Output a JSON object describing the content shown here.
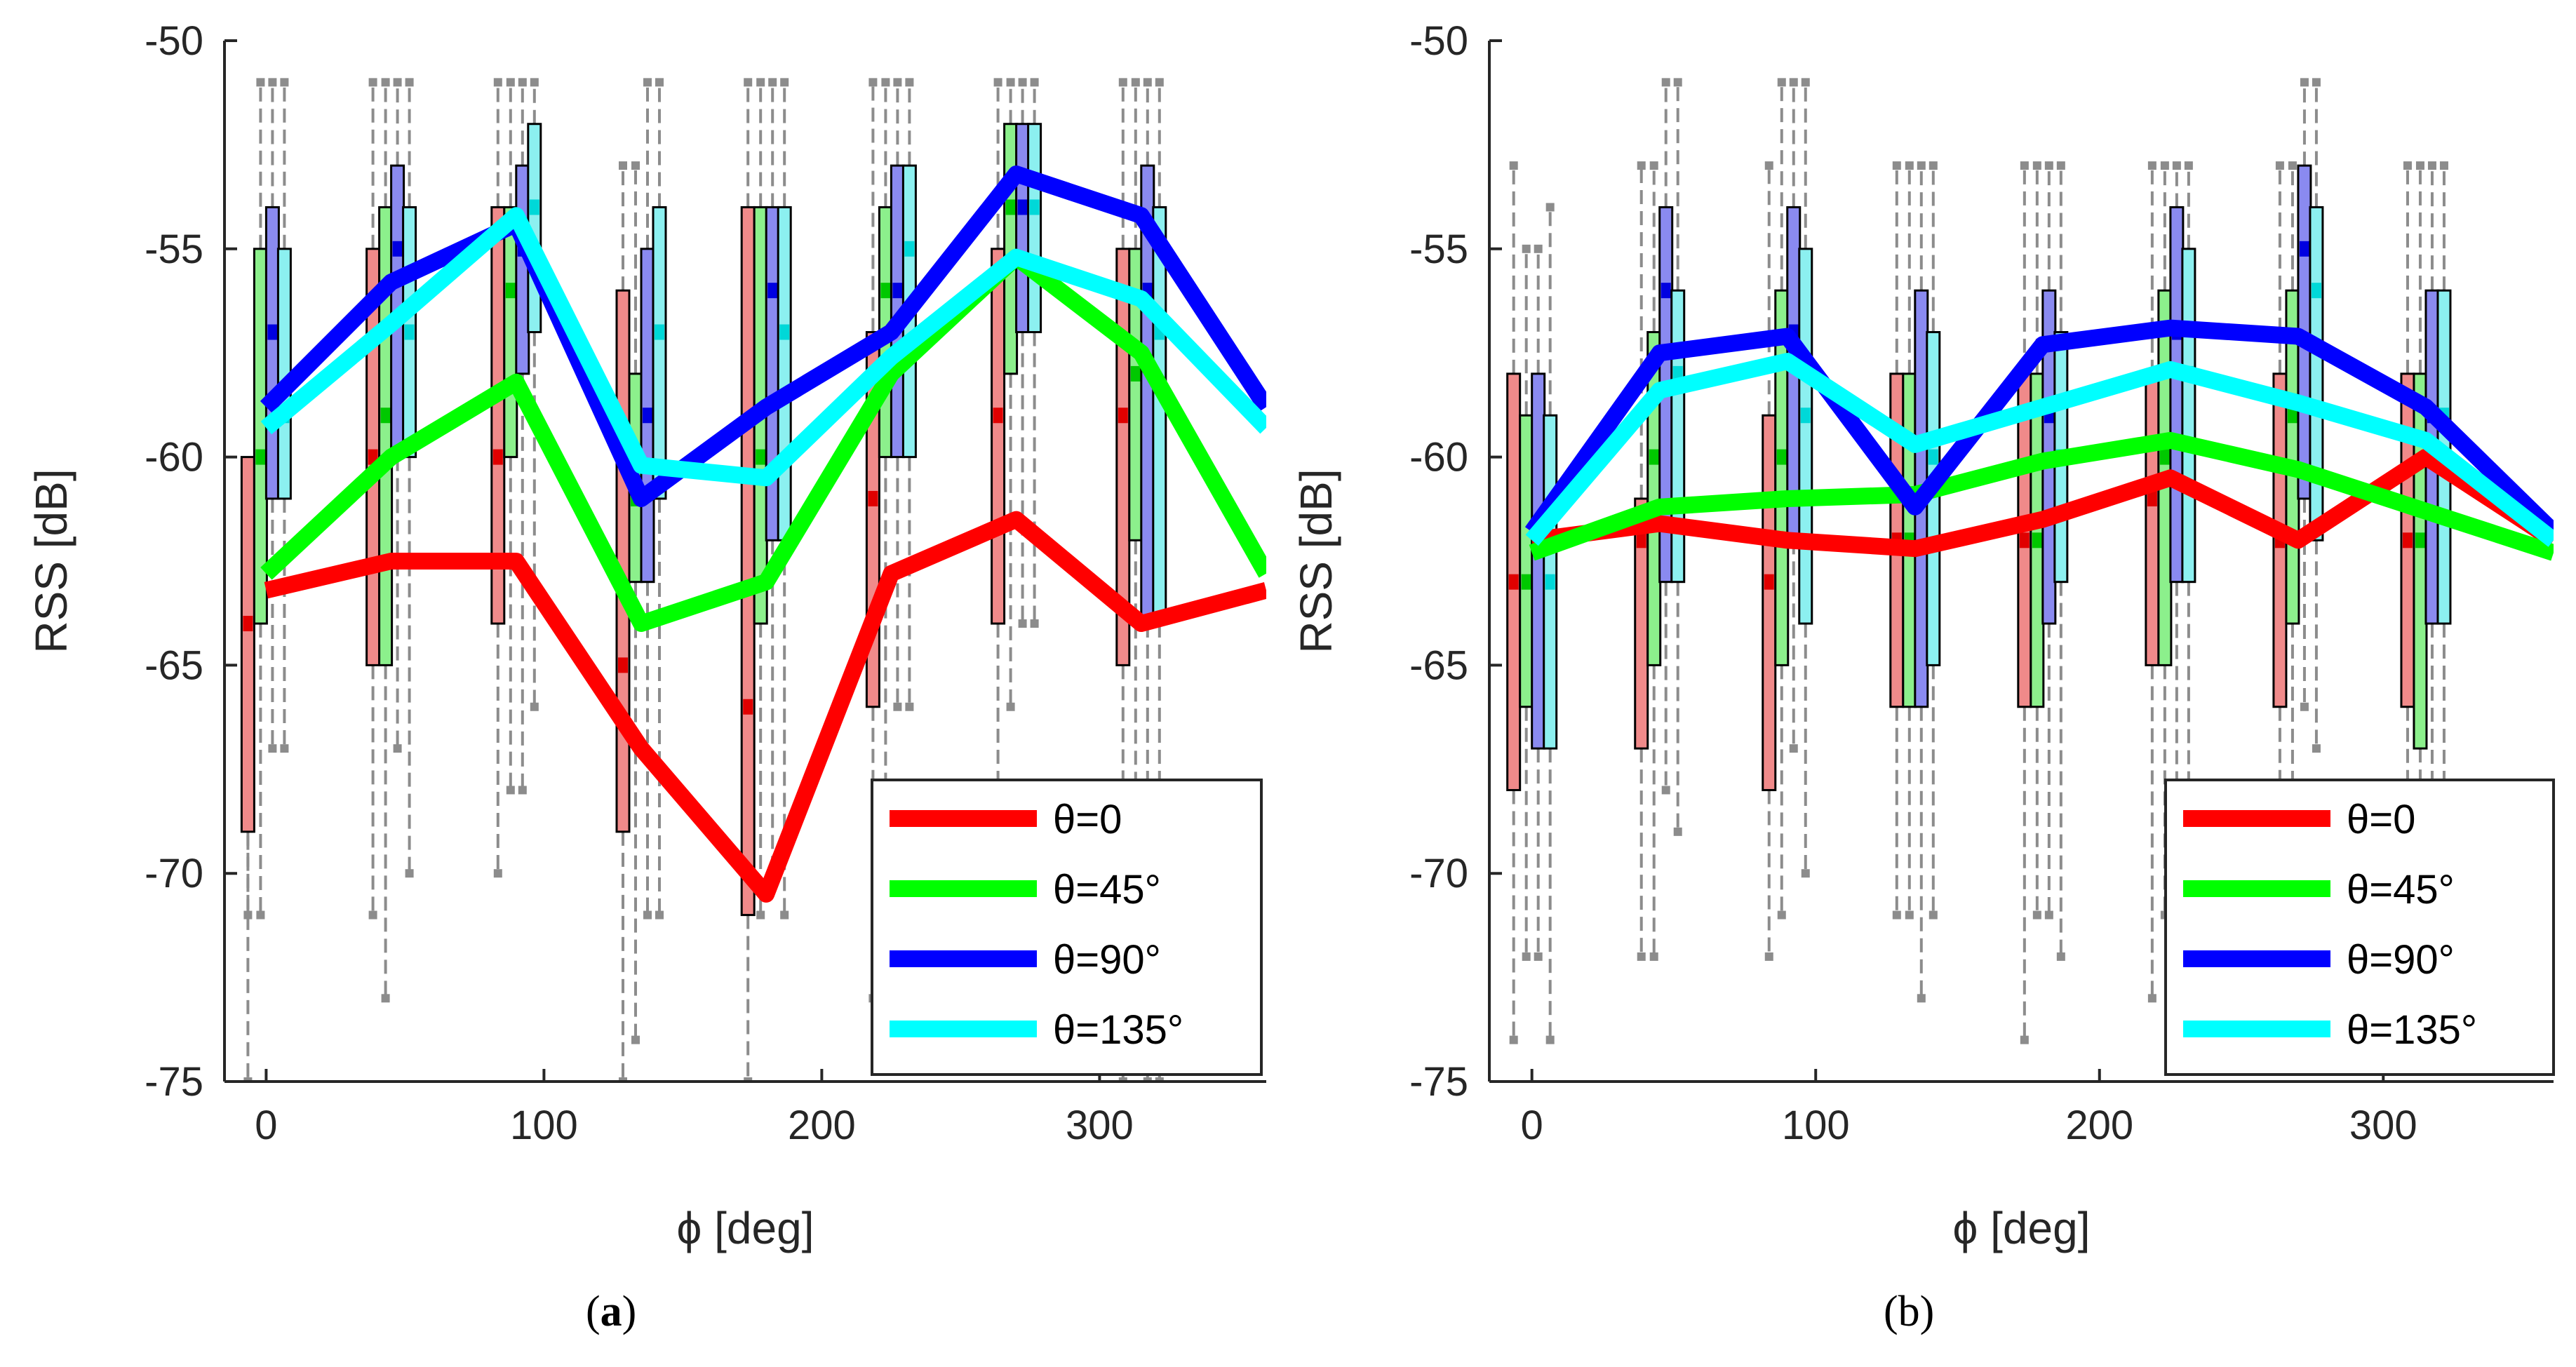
{
  "chart_data": [
    {
      "type": "line",
      "panel_label": "(a)",
      "panel_letter": "a",
      "xlabel": "ϕ [deg]",
      "ylabel": "RSS [dB]",
      "xlim": [
        -15,
        360
      ],
      "ylim": [
        -75,
        -50
      ],
      "xticks": [
        0,
        100,
        200,
        300
      ],
      "yticks": [
        -50,
        -55,
        -60,
        -65,
        -70,
        -75
      ],
      "x": [
        0,
        45,
        90,
        135,
        180,
        225,
        270,
        315,
        360
      ],
      "series": [
        {
          "name": "θ=0",
          "color": "#ff0000",
          "values": [
            -63.2,
            -62.5,
            -62.5,
            -67.0,
            -70.5,
            -62.8,
            -61.5,
            -64.0,
            -63.2
          ]
        },
        {
          "name": "θ=45°",
          "color": "#00ff00",
          "values": [
            -62.8,
            -60.0,
            -58.2,
            -64.0,
            -63.0,
            -58.0,
            -55.2,
            -57.5,
            -62.8
          ]
        },
        {
          "name": "θ=90°",
          "color": "#0000ff",
          "values": [
            -58.8,
            -55.8,
            -54.4,
            -61.0,
            -58.8,
            -57.0,
            -53.2,
            -54.2,
            -58.8
          ]
        },
        {
          "name": "θ=135°",
          "color": "#00ffff",
          "values": [
            -59.3,
            -56.8,
            -54.2,
            -60.2,
            -60.5,
            -57.6,
            -55.2,
            -56.2,
            -59.3
          ]
        }
      ],
      "boxes": [
        {
          "x": 0,
          "stats": [
            [
              -69,
              -60,
              -64,
              -75,
              -71
            ],
            [
              -64,
              -55,
              -60,
              -71,
              -51
            ],
            [
              -61,
              -54,
              -57,
              -67,
              -51
            ],
            [
              -61,
              -55,
              -59,
              -67,
              -51
            ]
          ]
        },
        {
          "x": 45,
          "stats": [
            [
              -65,
              -55,
              -60,
              -71,
              -51
            ],
            [
              -65,
              -54,
              -59,
              -73,
              -51
            ],
            [
              -60,
              -53,
              -55,
              -67,
              -51
            ],
            [
              -60,
              -54,
              -57,
              -70,
              -51
            ]
          ]
        },
        {
          "x": 90,
          "stats": [
            [
              -64,
              -54,
              -60,
              -70,
              -51
            ],
            [
              -60,
              -54,
              -56,
              -68,
              -51
            ],
            [
              -58,
              -53,
              -55,
              -68,
              -51
            ],
            [
              -57,
              -52,
              -54,
              -66,
              -51
            ]
          ]
        },
        {
          "x": 135,
          "stats": [
            [
              -69,
              -56,
              -65,
              -75,
              -53
            ],
            [
              -63,
              -58,
              -61,
              -74,
              -53
            ],
            [
              -63,
              -55,
              -59,
              -71,
              -51
            ],
            [
              -61,
              -54,
              -57,
              -71,
              -51
            ]
          ]
        },
        {
          "x": 180,
          "stats": [
            [
              -71,
              -54,
              -66,
              -75,
              -51
            ],
            [
              -64,
              -54,
              -60,
              -71,
              -51
            ],
            [
              -62,
              -54,
              -56,
              -70,
              -51
            ],
            [
              -62,
              -54,
              -57,
              -71,
              -51
            ]
          ]
        },
        {
          "x": 225,
          "stats": [
            [
              -66,
              -57,
              -61,
              -73,
              -51
            ],
            [
              -60,
              -54,
              -56,
              -68,
              -51
            ],
            [
              -60,
              -53,
              -56,
              -66,
              -51
            ],
            [
              -60,
              -53,
              -55,
              -66,
              -51
            ]
          ]
        },
        {
          "x": 270,
          "stats": [
            [
              -64,
              -55,
              -59,
              -70,
              -51
            ],
            [
              -58,
              -52,
              -54,
              -66,
              -51
            ],
            [
              -57,
              -52,
              -54,
              -64,
              -51
            ],
            [
              -57,
              -52,
              -54,
              -64,
              -51
            ]
          ]
        },
        {
          "x": 315,
          "stats": [
            [
              -65,
              -55,
              -59,
              -75,
              -51
            ],
            [
              -62,
              -55,
              -58,
              -73,
              -51
            ],
            [
              -64,
              -53,
              -56,
              -75,
              -51
            ],
            [
              -64,
              -54,
              -57,
              -75,
              -51
            ]
          ]
        }
      ],
      "legend": {
        "position": "bottom-right"
      }
    },
    {
      "type": "line",
      "panel_label": "(b)",
      "panel_letter": "b",
      "xlabel": "ϕ [deg]",
      "ylabel": "RSS [dB]",
      "xlim": [
        -15,
        360
      ],
      "ylim": [
        -75,
        -50
      ],
      "xticks": [
        0,
        100,
        200,
        300
      ],
      "yticks": [
        -50,
        -55,
        -60,
        -65,
        -70,
        -75
      ],
      "x": [
        0,
        45,
        90,
        135,
        180,
        225,
        270,
        315,
        360
      ],
      "series": [
        {
          "name": "θ=0",
          "color": "#ff0000",
          "values": [
            -62.0,
            -61.6,
            -62.0,
            -62.2,
            -61.5,
            -60.5,
            -62.0,
            -60.0,
            -62.0
          ]
        },
        {
          "name": "θ=45°",
          "color": "#00ff00",
          "values": [
            -62.3,
            -61.2,
            -61.0,
            -60.9,
            -60.1,
            -59.6,
            -60.3,
            -61.3,
            -62.3
          ]
        },
        {
          "name": "θ=90°",
          "color": "#0000ff",
          "values": [
            -61.8,
            -57.5,
            -57.1,
            -61.2,
            -57.3,
            -56.9,
            -57.1,
            -58.8,
            -61.8
          ]
        },
        {
          "name": "θ=135°",
          "color": "#00ffff",
          "values": [
            -62.0,
            -58.4,
            -57.7,
            -59.7,
            -58.8,
            -57.9,
            -58.7,
            -59.6,
            -62.0
          ]
        }
      ],
      "boxes": [
        {
          "x": 0,
          "stats": [
            [
              -68,
              -58,
              -63,
              -74,
              -53
            ],
            [
              -66,
              -59,
              -63,
              -72,
              -55
            ],
            [
              -67,
              -58,
              -62,
              -72,
              -55
            ],
            [
              -67,
              -59,
              -63,
              -74,
              -54
            ]
          ]
        },
        {
          "x": 45,
          "stats": [
            [
              -67,
              -61,
              -62,
              -72,
              -53
            ],
            [
              -65,
              -57,
              -60,
              -72,
              -53
            ],
            [
              -63,
              -54,
              -56,
              -68,
              -51
            ],
            [
              -63,
              -56,
              -58,
              -69,
              -51
            ]
          ]
        },
        {
          "x": 90,
          "stats": [
            [
              -68,
              -59,
              -63,
              -72,
              -53
            ],
            [
              -65,
              -56,
              -60,
              -71,
              -51
            ],
            [
              -62,
              -54,
              -57,
              -67,
              -51
            ],
            [
              -64,
              -55,
              -59,
              -70,
              -51
            ]
          ]
        },
        {
          "x": 135,
          "stats": [
            [
              -66,
              -58,
              -62,
              -71,
              -53
            ],
            [
              -66,
              -58,
              -62,
              -71,
              -53
            ],
            [
              -66,
              -56,
              -61,
              -73,
              -53
            ],
            [
              -65,
              -57,
              -60,
              -71,
              -53
            ]
          ]
        },
        {
          "x": 180,
          "stats": [
            [
              -66,
              -58,
              -62,
              -74,
              -53
            ],
            [
              -66,
              -58,
              -62,
              -71,
              -53
            ],
            [
              -64,
              -56,
              -59,
              -71,
              -53
            ],
            [
              -63,
              -57,
              -60,
              -72,
              -53
            ]
          ]
        },
        {
          "x": 225,
          "stats": [
            [
              -65,
              -58,
              -61,
              -73,
              -53
            ],
            [
              -65,
              -56,
              -60,
              -71,
              -53
            ],
            [
              -63,
              -54,
              -57,
              -68,
              -53
            ],
            [
              -63,
              -55,
              -58,
              -68,
              -53
            ]
          ]
        },
        {
          "x": 270,
          "stats": [
            [
              -66,
              -58,
              -62,
              -71,
              -53
            ],
            [
              -64,
              -56,
              -59,
              -69,
              -53
            ],
            [
              -61,
              -53,
              -55,
              -66,
              -51
            ],
            [
              -62,
              -54,
              -56,
              -67,
              -51
            ]
          ]
        },
        {
          "x": 315,
          "stats": [
            [
              -66,
              -58,
              -62,
              -72,
              -53
            ],
            [
              -67,
              -58,
              -62,
              -73,
              -53
            ],
            [
              -64,
              -56,
              -59,
              -71,
              -53
            ],
            [
              -64,
              -56,
              -59,
              -71,
              -53
            ]
          ]
        }
      ],
      "legend": {
        "position": "bottom-right"
      }
    }
  ]
}
